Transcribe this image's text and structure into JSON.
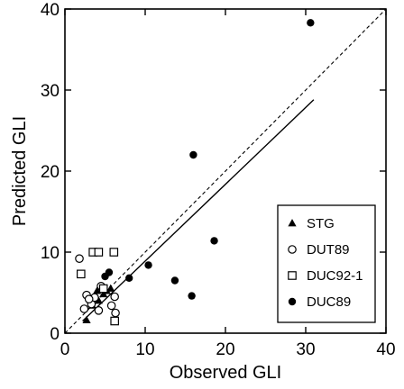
{
  "chart_data": {
    "type": "scatter",
    "xlabel": "Observed GLI",
    "ylabel": "Predicted GLI",
    "xlim": [
      0,
      40
    ],
    "ylim": [
      0,
      40
    ],
    "xticks": [
      0,
      10,
      20,
      30,
      40
    ],
    "yticks": [
      0,
      10,
      20,
      30,
      40
    ],
    "grid": false,
    "legend_position": "lower-right",
    "reference_line": {
      "name": "1:1",
      "style": "dashed",
      "points": [
        [
          0,
          0
        ],
        [
          40,
          40
        ]
      ]
    },
    "regression_line": {
      "style": "solid",
      "points": [
        [
          2.2,
          1.5
        ],
        [
          31,
          28.8
        ]
      ]
    },
    "series": [
      {
        "name": "STG",
        "marker": "filled-triangle",
        "points": [
          [
            2.7,
            1.6
          ],
          [
            4.2,
            4.0
          ],
          [
            4.8,
            4.8
          ],
          [
            5.2,
            5.2
          ],
          [
            5.7,
            5.5
          ],
          [
            4.0,
            5.2
          ],
          [
            3.4,
            3.4
          ]
        ]
      },
      {
        "name": "DUT89",
        "marker": "open-circle",
        "points": [
          [
            1.8,
            9.2
          ],
          [
            2.7,
            4.7
          ],
          [
            3.3,
            3.6
          ],
          [
            3.7,
            4.4
          ],
          [
            4.2,
            2.8
          ],
          [
            5.8,
            3.4
          ],
          [
            6.3,
            2.5
          ],
          [
            2.4,
            3.0
          ],
          [
            3.0,
            4.2
          ],
          [
            6.2,
            4.5
          ],
          [
            4.5,
            5.8
          ]
        ]
      },
      {
        "name": "DUC92-1",
        "marker": "open-square",
        "points": [
          [
            3.5,
            10.0
          ],
          [
            4.2,
            10.0
          ],
          [
            6.1,
            10.0
          ],
          [
            2.0,
            7.3
          ],
          [
            6.2,
            1.5
          ],
          [
            4.8,
            5.5
          ]
        ]
      },
      {
        "name": "DUC89",
        "marker": "filled-circle",
        "points": [
          [
            5.0,
            7.0
          ],
          [
            5.5,
            7.5
          ],
          [
            8.0,
            6.8
          ],
          [
            10.4,
            8.4
          ],
          [
            13.7,
            6.5
          ],
          [
            15.8,
            4.6
          ],
          [
            16.0,
            22.0
          ],
          [
            18.6,
            11.4
          ],
          [
            30.6,
            38.3
          ]
        ]
      }
    ]
  }
}
